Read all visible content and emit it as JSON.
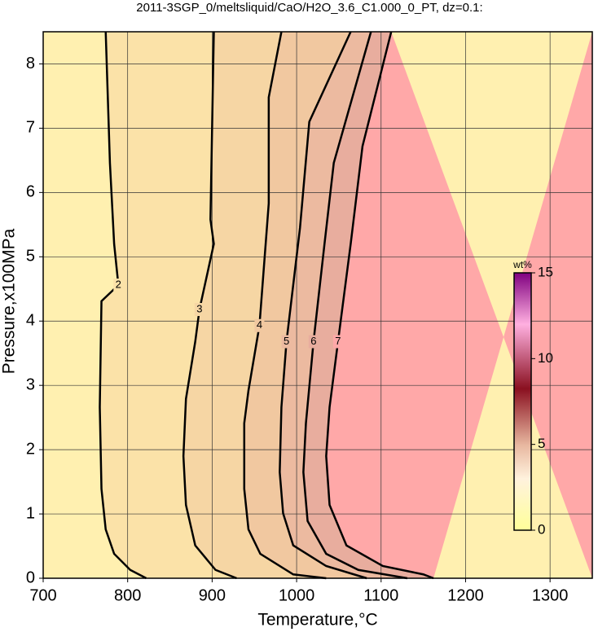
{
  "chart_data": {
    "type": "contour",
    "title": "2011-3SGP_0/meltsliquid/CaO/H2O_3.6_C1.000_0_PT, dz=0.1:",
    "xlabel": "Temperature,°C",
    "ylabel": "Pressure,x100MPa",
    "xlim": [
      700,
      1350
    ],
    "ylim": [
      0,
      8.5
    ],
    "xticks": [
      700,
      800,
      900,
      1000,
      1100,
      1200,
      1300
    ],
    "yticks": [
      0,
      1,
      2,
      3,
      4,
      5,
      6,
      7,
      8
    ],
    "grid": true,
    "contours": [
      {
        "level": 2,
        "color": "#fbe2a8",
        "x": [
          774,
          779,
          784,
          789,
          769,
          767,
          769,
          774,
          784,
          803,
          822
        ],
        "y": [
          8.5,
          6.46,
          5.2,
          4.56,
          4.31,
          2.66,
          1.39,
          0.76,
          0.38,
          0.13,
          0
        ]
      },
      {
        "level": 3,
        "color": "#f6d6a4",
        "x": [
          902,
          898,
          902,
          885,
          880,
          869,
          866,
          869,
          880,
          904,
          929
        ],
        "y": [
          8.5,
          5.58,
          5.2,
          4.18,
          3.68,
          2.79,
          1.9,
          1.14,
          0.51,
          0.13,
          0
        ]
      },
      {
        "level": 4,
        "color": "#f1c8a0",
        "x": [
          982,
          967,
          967,
          956,
          943,
          938,
          938,
          943,
          957,
          996,
          1035
        ],
        "y": [
          8.5,
          7.48,
          5.83,
          3.93,
          2.92,
          2.41,
          1.39,
          0.76,
          0.38,
          0.06,
          0
        ]
      },
      {
        "level": 5,
        "color": "#ecbaa0",
        "x": [
          1064,
          1015,
          1004,
          988,
          982,
          980,
          984,
          996,
          1035,
          1083
        ],
        "y": [
          8.5,
          7.1,
          5.45,
          3.68,
          2.66,
          1.65,
          1.01,
          0.51,
          0.19,
          0
        ]
      },
      {
        "level": 6,
        "color": "#e8ad9e",
        "x": [
          1088,
          1044,
          1033,
          1020,
          1011,
          1008,
          1013,
          1035,
          1073,
          1131
        ],
        "y": [
          8.5,
          6.46,
          5.2,
          3.68,
          2.41,
          1.65,
          0.89,
          0.38,
          0.13,
          0
        ]
      },
      {
        "level": 7,
        "color": "#ffa8a8",
        "x": [
          1112,
          1078,
          1064,
          1049,
          1039,
          1035,
          1039,
          1059,
          1102,
          1150,
          1162
        ],
        "y": [
          8.5,
          6.72,
          5.2,
          3.68,
          2.66,
          1.9,
          1.14,
          0.51,
          0.19,
          0.06,
          0
        ]
      }
    ],
    "base_color": "#fff0b0",
    "colorbar": {
      "label": "wt%",
      "lim": [
        0,
        15
      ],
      "ticks": [
        0,
        5,
        10,
        15
      ]
    }
  }
}
